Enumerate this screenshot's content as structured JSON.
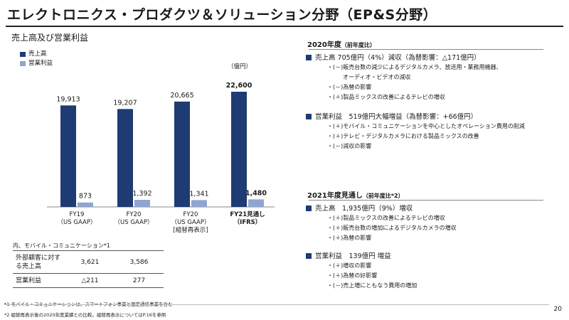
{
  "page_title": "エレクトロニクス・プロダクツ＆ソリューション分野（EP&S分野）",
  "chart_data": {
    "type": "bar",
    "title": "売上高及び営業利益",
    "unit": "（億円）",
    "categories": [
      {
        "line1": "FY19",
        "line2": "（US GAAP）",
        "line3": ""
      },
      {
        "line1": "FY20",
        "line2": "（US GAAP）",
        "line3": ""
      },
      {
        "line1": "FY20",
        "line2": "（US GAAP）",
        "line3": "[組替再表示]"
      },
      {
        "line1": "FY21見通し",
        "line2": "（IFRS）",
        "line3": ""
      }
    ],
    "series": [
      {
        "name": "売上高",
        "values": [
          19913,
          19207,
          20665,
          22600
        ],
        "labels": [
          "19,913",
          "19,207",
          "20,665",
          "22,600"
        ],
        "color": "#1f3b73"
      },
      {
        "name": "営業利益",
        "values": [
          873,
          1392,
          1341,
          1480
        ],
        "labels": [
          "873",
          "1,392",
          "1,341",
          "1,480"
        ],
        "color": "#8fa5d0"
      }
    ]
  },
  "segment_table": {
    "title": "内、モバイル・コミュニケーション*1",
    "rows": [
      {
        "label": "外部顧客に対する売上高",
        "v1": "3,621",
        "v2": "3,586"
      },
      {
        "label": "営業利益",
        "v1": "△211",
        "v2": "277"
      }
    ]
  },
  "footnotes": [
    "*1 モバイル・コミュニケーションは、スマートフォン事業と固定通信事業を含む",
    "*2 組替再表示後の2020年度業績との比較。組替再表示についてはP.16を参照"
  ],
  "right": {
    "section1_title": "2020年度",
    "section1_sub": "（前年度比）",
    "s1_sales": "売上高 705億円（4%）減収（為替影響：△171億円）",
    "s1_sales_items": [
      "・(－)販売台数の減少によるデジタルカメラ、放送用・業務用機器、",
      "オーディオ・ビデオの減収",
      "・(－)為替の影響",
      "・(＋)製品ミックスの改善によるテレビの増収"
    ],
    "s1_op": "営業利益　519億円大幅増益（為替影響：+66億円）",
    "s1_op_items": [
      "・(＋)モバイル・コミュニケーションを中心としたオペレーション費用の削減",
      "・(＋)テレビ・デジタルカメラにおける製品ミックスの改善",
      "・(－)減収の影響"
    ],
    "section2_title": "2021年度見通し",
    "section2_sub": "（前年度比*2）",
    "s2_sales": "売上高　1,935億円（9%）増収",
    "s2_sales_items": [
      "・(＋)製品ミックスの改善によるテレビの増収",
      "・(＋)販売台数の増加によるデジタルカメラの増収",
      "・(＋)為替の影響"
    ],
    "s2_op": "営業利益　139億円 増益",
    "s2_op_items": [
      "・(＋)増収の影響",
      "・(＋)為替の好影響",
      "・(－)売上増にともなう費用の増加"
    ]
  },
  "page_number": "20"
}
